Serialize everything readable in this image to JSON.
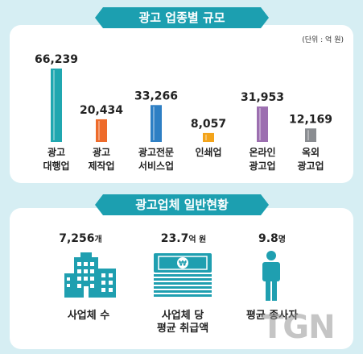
{
  "section1": {
    "title": "광고 업종별 규모",
    "unit": "(단위 : 억 원)"
  },
  "chart_data": {
    "type": "bar",
    "title": "광고 업종별 규모",
    "unit": "(단위 : 억 원)",
    "categories": [
      [
        "광고",
        "대행업"
      ],
      [
        "광고",
        "제작업"
      ],
      [
        "광고전문",
        "서비스업"
      ],
      [
        "인쇄업"
      ],
      [
        "온라인",
        "광고업"
      ],
      [
        "옥외",
        "광고업"
      ]
    ],
    "values": [
      66239,
      20434,
      33266,
      8057,
      31953,
      12169
    ],
    "value_labels": [
      "66,239",
      "20,434",
      "33,266",
      "8,057",
      "31,953",
      "12,169"
    ],
    "colors": [
      "#20a7b0",
      "#ee6b2b",
      "#2e7fc4",
      "#f3a41b",
      "#9c6fb0",
      "#8a8d91"
    ],
    "ylim": [
      0,
      66239
    ]
  },
  "section2": {
    "title": "광고업체 일반현황",
    "stats": [
      {
        "value": "7,256",
        "unit": "개",
        "label": [
          "사업체 수"
        ],
        "icon": "building-icon"
      },
      {
        "value": "23.7",
        "unit": "억 원",
        "label": [
          "사업체 당",
          "평균 취급액"
        ],
        "icon": "money-stack-icon"
      },
      {
        "value": "9.8",
        "unit": "명",
        "label": [
          "평균 종사자"
        ],
        "icon": "person-icon"
      }
    ]
  },
  "watermark": "TGN"
}
